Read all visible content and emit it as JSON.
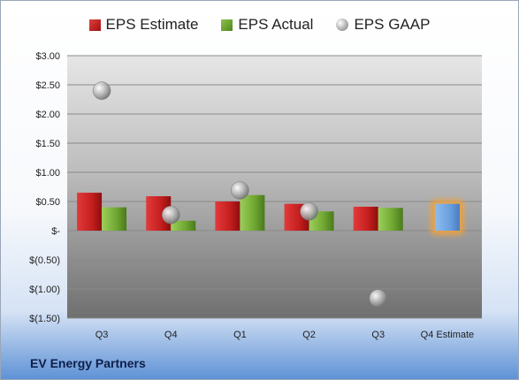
{
  "company_name": "EV Energy Partners",
  "legend": [
    {
      "label": "EPS Estimate",
      "key": "est"
    },
    {
      "label": "EPS Actual",
      "key": "act"
    },
    {
      "label": "EPS GAAP",
      "key": "gaap"
    }
  ],
  "colors": {
    "estimate": "#c41e1e",
    "actual": "#6fa632",
    "gaap": "#a8a8a8",
    "q4_estimate": "#6aa0e0",
    "highlight": "#f2a23a"
  },
  "chart_data": {
    "type": "bar",
    "categories": [
      "Q3",
      "Q4",
      "Q1",
      "Q2",
      "Q3",
      "Q4 Estimate"
    ],
    "series": [
      {
        "name": "EPS Estimate",
        "values": [
          0.65,
          0.59,
          0.5,
          0.46,
          0.41,
          0.46
        ]
      },
      {
        "name": "EPS Actual",
        "values": [
          0.4,
          0.17,
          0.61,
          0.33,
          0.39,
          null
        ]
      },
      {
        "name": "EPS GAAP",
        "values": [
          2.4,
          0.27,
          0.69,
          0.33,
          -1.16,
          null
        ]
      }
    ],
    "ylim": [
      -1.5,
      3.0
    ],
    "yticks": [
      3.0,
      2.5,
      2.0,
      1.5,
      1.0,
      0.5,
      0.0,
      -0.5,
      -1.0,
      -1.5
    ],
    "ytick_labels": [
      "$3.00",
      "$2.50",
      "$2.00",
      "$1.50",
      "$1.00",
      "$0.50",
      "$-",
      "$(0.50)",
      "$(1.00)",
      "$(1.50)"
    ],
    "grid": true,
    "legend_position": "top"
  }
}
